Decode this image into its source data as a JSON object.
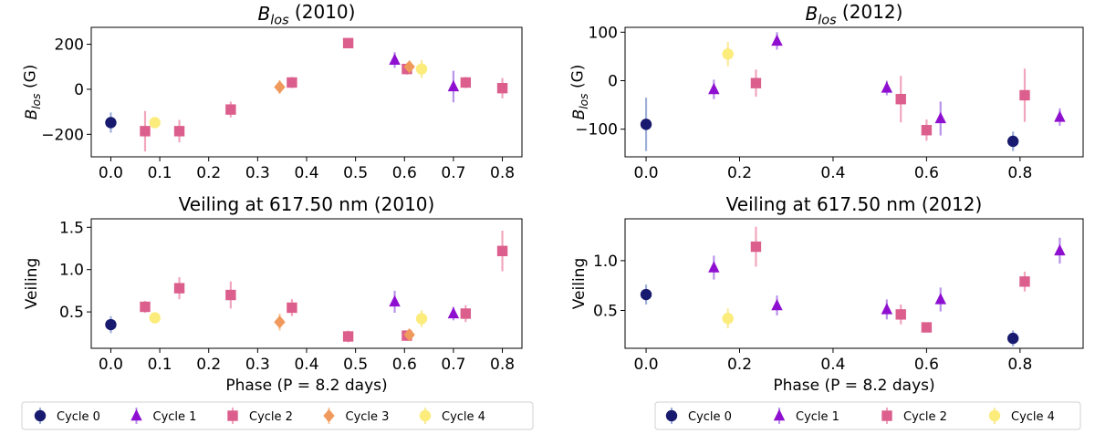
{
  "chart_data": [
    {
      "type": "scatter",
      "title": "B_los (2010)",
      "title_main": "B",
      "title_sub": "los",
      "title_rest": " (2010)",
      "xlabel": "",
      "ylabel": "B_los (G)",
      "ylabel_main": "B",
      "ylabel_sub": "los",
      "ylabel_rest": " (G)",
      "xlim": [
        -0.04,
        0.84
      ],
      "ylim": [
        -300,
        275
      ],
      "xticks": [
        0.0,
        0.1,
        0.2,
        0.3,
        0.4,
        0.5,
        0.6,
        0.7,
        0.8
      ],
      "xtick_labels": [
        "0.0",
        "0.1",
        "0.2",
        "0.3",
        "0.4",
        "0.5",
        "0.6",
        "0.7",
        "0.8"
      ],
      "yticks": [
        -200,
        0,
        200
      ],
      "ytick_labels": [
        "−200",
        "0",
        "200"
      ],
      "series": [
        {
          "name": "Cycle 0",
          "points": [
            {
              "x": 0.0,
              "y": -148,
              "err": 45
            }
          ]
        },
        {
          "name": "Cycle 1",
          "points": [
            {
              "x": 0.58,
              "y": 130,
              "err": 35
            },
            {
              "x": 0.7,
              "y": 12,
              "err": 70
            }
          ]
        },
        {
          "name": "Cycle 2",
          "points": [
            {
              "x": 0.07,
              "y": -186,
              "err": 90
            },
            {
              "x": 0.14,
              "y": -186,
              "err": 50
            },
            {
              "x": 0.245,
              "y": -90,
              "err": 35
            },
            {
              "x": 0.37,
              "y": 30,
              "err": 25
            },
            {
              "x": 0.485,
              "y": 205,
              "err": 15
            },
            {
              "x": 0.605,
              "y": 90,
              "err": 25
            },
            {
              "x": 0.725,
              "y": 30,
              "err": 25
            },
            {
              "x": 0.8,
              "y": 5,
              "err": 45
            }
          ]
        },
        {
          "name": "Cycle 3",
          "points": [
            {
              "x": 0.345,
              "y": 10,
              "err": 30
            },
            {
              "x": 0.61,
              "y": 100,
              "err": 20
            }
          ]
        },
        {
          "name": "Cycle 4",
          "points": [
            {
              "x": 0.09,
              "y": -148,
              "err": 20
            },
            {
              "x": 0.635,
              "y": 90,
              "err": 40
            }
          ]
        }
      ]
    },
    {
      "type": "scatter",
      "title": "B_los (2012)",
      "title_main": "B",
      "title_sub": "los",
      "title_rest": " (2012)",
      "xlabel": "",
      "ylabel": "B_los (G)",
      "ylabel_main": "B",
      "ylabel_sub": "los",
      "ylabel_rest": " (G)",
      "xlim": [
        -0.045,
        0.935
      ],
      "ylim": [
        -157,
        110
      ],
      "xticks": [
        0.0,
        0.2,
        0.4,
        0.6,
        0.8
      ],
      "xtick_labels": [
        "0.0",
        "0.2",
        "0.4",
        "0.6",
        "0.8"
      ],
      "yticks": [
        -100,
        0,
        100
      ],
      "ytick_labels": [
        "−100",
        "0",
        "100"
      ],
      "series": [
        {
          "name": "Cycle 0",
          "points": [
            {
              "x": 0.0,
              "y": -90,
              "err": 55
            },
            {
              "x": 0.785,
              "y": -125,
              "err": 20
            }
          ]
        },
        {
          "name": "Cycle 1",
          "points": [
            {
              "x": 0.145,
              "y": -18,
              "err": 20
            },
            {
              "x": 0.28,
              "y": 82,
              "err": 18
            },
            {
              "x": 0.515,
              "y": -15,
              "err": 15
            },
            {
              "x": 0.63,
              "y": -78,
              "err": 35
            },
            {
              "x": 0.885,
              "y": -75,
              "err": 18
            }
          ]
        },
        {
          "name": "Cycle 2",
          "points": [
            {
              "x": 0.235,
              "y": -5,
              "err": 28
            },
            {
              "x": 0.545,
              "y": -38,
              "err": 48
            },
            {
              "x": 0.6,
              "y": -102,
              "err": 22
            },
            {
              "x": 0.81,
              "y": -30,
              "err": 55
            }
          ]
        },
        {
          "name": "Cycle 4",
          "points": [
            {
              "x": 0.175,
              "y": 55,
              "err": 25
            }
          ]
        }
      ]
    },
    {
      "type": "scatter",
      "title": "Veiling at 617.50 nm (2010)",
      "xlabel": "Phase (P = 8.2 days)",
      "ylabel": "Veiling",
      "xlim": [
        -0.04,
        0.84
      ],
      "ylim": [
        0.07,
        1.6
      ],
      "xticks": [
        0.0,
        0.1,
        0.2,
        0.3,
        0.4,
        0.5,
        0.6,
        0.7,
        0.8
      ],
      "xtick_labels": [
        "0.0",
        "0.1",
        "0.2",
        "0.3",
        "0.4",
        "0.5",
        "0.6",
        "0.7",
        "0.8"
      ],
      "yticks": [
        0.5,
        1.0,
        1.5
      ],
      "ytick_labels": [
        "0.5",
        "1.0",
        "1.5"
      ],
      "series": [
        {
          "name": "Cycle 0",
          "points": [
            {
              "x": 0.0,
              "y": 0.35,
              "err": 0.1
            }
          ]
        },
        {
          "name": "Cycle 1",
          "points": [
            {
              "x": 0.58,
              "y": 0.62,
              "err": 0.13
            },
            {
              "x": 0.7,
              "y": 0.48,
              "err": 0.08
            }
          ]
        },
        {
          "name": "Cycle 2",
          "points": [
            {
              "x": 0.07,
              "y": 0.56,
              "err": 0.07
            },
            {
              "x": 0.14,
              "y": 0.78,
              "err": 0.13
            },
            {
              "x": 0.245,
              "y": 0.7,
              "err": 0.16
            },
            {
              "x": 0.37,
              "y": 0.55,
              "err": 0.1
            },
            {
              "x": 0.485,
              "y": 0.21,
              "err": 0.07
            },
            {
              "x": 0.605,
              "y": 0.22,
              "err": 0.06
            },
            {
              "x": 0.725,
              "y": 0.48,
              "err": 0.1
            },
            {
              "x": 0.8,
              "y": 1.22,
              "err": 0.24
            }
          ]
        },
        {
          "name": "Cycle 3",
          "points": [
            {
              "x": 0.345,
              "y": 0.38,
              "err": 0.1
            },
            {
              "x": 0.61,
              "y": 0.23,
              "err": 0.05
            }
          ]
        },
        {
          "name": "Cycle 4",
          "points": [
            {
              "x": 0.09,
              "y": 0.43,
              "err": 0.04
            },
            {
              "x": 0.635,
              "y": 0.42,
              "err": 0.1
            }
          ]
        }
      ]
    },
    {
      "type": "scatter",
      "title": "Veiling at 617.50 nm (2012)",
      "xlabel": "Phase (P = 8.2 days)",
      "ylabel": "Veiling",
      "xlim": [
        -0.045,
        0.935
      ],
      "ylim": [
        0.12,
        1.42
      ],
      "xticks": [
        0.0,
        0.2,
        0.4,
        0.6,
        0.8
      ],
      "xtick_labels": [
        "0.0",
        "0.2",
        "0.4",
        "0.6",
        "0.8"
      ],
      "yticks": [
        0.5,
        1.0
      ],
      "ytick_labels": [
        "0.5",
        "1.0"
      ],
      "series": [
        {
          "name": "Cycle 0",
          "points": [
            {
              "x": 0.0,
              "y": 0.66,
              "err": 0.1
            },
            {
              "x": 0.785,
              "y": 0.22,
              "err": 0.08
            }
          ]
        },
        {
          "name": "Cycle 1",
          "points": [
            {
              "x": 0.145,
              "y": 0.93,
              "err": 0.12
            },
            {
              "x": 0.28,
              "y": 0.55,
              "err": 0.1
            },
            {
              "x": 0.515,
              "y": 0.51,
              "err": 0.1
            },
            {
              "x": 0.63,
              "y": 0.61,
              "err": 0.12
            },
            {
              "x": 0.885,
              "y": 1.1,
              "err": 0.13
            }
          ]
        },
        {
          "name": "Cycle 2",
          "points": [
            {
              "x": 0.235,
              "y": 1.14,
              "err": 0.2
            },
            {
              "x": 0.545,
              "y": 0.46,
              "err": 0.1
            },
            {
              "x": 0.6,
              "y": 0.33,
              "err": 0.05
            },
            {
              "x": 0.81,
              "y": 0.79,
              "err": 0.1
            }
          ]
        },
        {
          "name": "Cycle 4",
          "points": [
            {
              "x": 0.175,
              "y": 0.42,
              "err": 0.1
            }
          ]
        }
      ]
    }
  ],
  "legends": [
    {
      "entries": [
        "Cycle 0",
        "Cycle 1",
        "Cycle 2",
        "Cycle 3",
        "Cycle 4"
      ]
    },
    {
      "entries": [
        "Cycle 0",
        "Cycle 1",
        "Cycle 2",
        "Cycle 4"
      ]
    }
  ],
  "cycle_styles": {
    "Cycle 0": {
      "marker": "circle",
      "color": "#171a6e",
      "error_color": "#9eafd8"
    },
    "Cycle 1": {
      "marker": "triangle",
      "color": "#8e0fd0",
      "error_color": "#b992ea"
    },
    "Cycle 2": {
      "marker": "square",
      "color": "#db5e8c",
      "error_color": "#f2a6bd"
    },
    "Cycle 3": {
      "marker": "diamond",
      "color": "#ef9a5c",
      "error_color": "#f6c79f"
    },
    "Cycle 4": {
      "marker": "circle",
      "color": "#fbec7c",
      "error_color": "#f8ea9b"
    }
  }
}
